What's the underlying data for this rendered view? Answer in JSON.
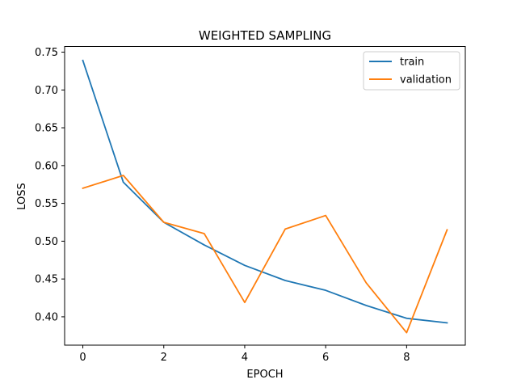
{
  "chart_data": {
    "type": "line",
    "title": "WEIGHTED SAMPLING",
    "xlabel": "EPOCH",
    "ylabel": "LOSS",
    "x": [
      0,
      1,
      2,
      3,
      4,
      5,
      6,
      7,
      8,
      9
    ],
    "xlim": [
      -0.45,
      9.45
    ],
    "ylim": [
      0.3625,
      0.7575
    ],
    "xticks": [
      0,
      2,
      4,
      6,
      8
    ],
    "yticks": [
      0.4,
      0.45,
      0.5,
      0.55,
      0.6,
      0.65,
      0.7,
      0.75
    ],
    "xtick_labels": [
      "0",
      "2",
      "4",
      "6",
      "8"
    ],
    "ytick_labels": [
      "0.40",
      "0.45",
      "0.50",
      "0.55",
      "0.60",
      "0.65",
      "0.70",
      "0.75"
    ],
    "grid": false,
    "legend_position": "top-right",
    "series": [
      {
        "name": "train",
        "color": "#1f77b4",
        "values": [
          0.739,
          0.578,
          0.525,
          0.495,
          0.468,
          0.448,
          0.435,
          0.415,
          0.398,
          0.392
        ]
      },
      {
        "name": "validation",
        "color": "#ff7f0e",
        "values": [
          0.57,
          0.587,
          0.525,
          0.51,
          0.419,
          0.516,
          0.534,
          0.445,
          0.379,
          0.515
        ]
      }
    ]
  }
}
